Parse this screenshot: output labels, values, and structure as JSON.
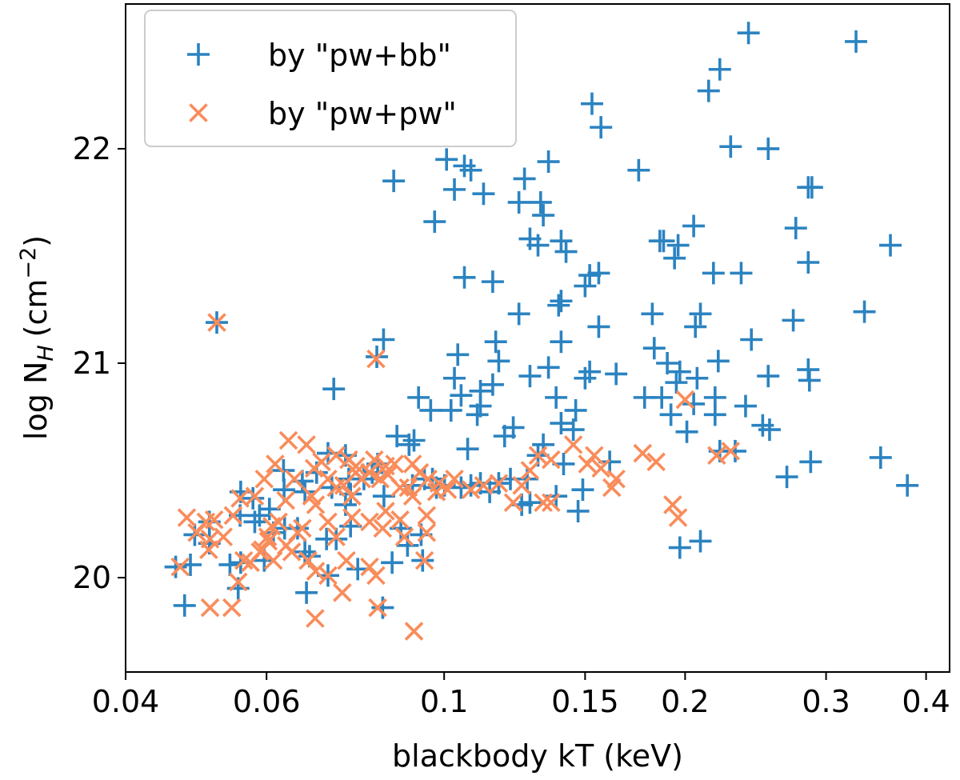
{
  "chart_data": {
    "type": "scatter",
    "title": "",
    "xlabel": "blackbody kT (keV)",
    "ylabel_main": "log N",
    "ylabel_sub": "H",
    "ylabel_unit": "(cm",
    "ylabel_exp": "−2",
    "ylabel_close": ")",
    "xscale": "log",
    "xlim": [
      0.04,
      0.428
    ],
    "ylim": [
      19.56,
      22.675
    ],
    "xticks": [
      0.04,
      0.06,
      0.1,
      0.15,
      0.2,
      0.3,
      0.4
    ],
    "xtick_labels": [
      "0.04",
      "0.06",
      "0.1",
      "0.15",
      "0.2",
      "0.3",
      "0.4"
    ],
    "yticks": [
      20,
      21,
      22
    ],
    "ytick_labels": [
      "20",
      "21",
      "22"
    ],
    "grid": false,
    "legend_position": "top-left",
    "series": [
      {
        "name": "by \"pw+bb\"",
        "marker": "plus",
        "color": "#2b83c1",
        "points": [
          [
            0.24,
            22.54
          ],
          [
            0.327,
            22.5
          ],
          [
            0.221,
            22.37
          ],
          [
            0.214,
            22.27
          ],
          [
            0.153,
            22.21
          ],
          [
            0.157,
            22.1
          ],
          [
            0.228,
            22.01
          ],
          [
            0.254,
            22.0
          ],
          [
            0.1007,
            21.95
          ],
          [
            0.106,
            21.92
          ],
          [
            0.108,
            21.9
          ],
          [
            0.0865,
            21.85
          ],
          [
            0.103,
            21.81
          ],
          [
            0.126,
            21.86
          ],
          [
            0.112,
            21.79
          ],
          [
            0.135,
            21.94
          ],
          [
            0.175,
            21.9
          ],
          [
            0.124,
            21.75
          ],
          [
            0.132,
            21.75
          ],
          [
            0.133,
            21.69
          ],
          [
            0.0973,
            21.66
          ],
          [
            0.205,
            21.64
          ],
          [
            0.275,
            21.63
          ],
          [
            0.285,
            21.82
          ],
          [
            0.288,
            21.82
          ],
          [
            0.361,
            21.55
          ],
          [
            0.186,
            21.57
          ],
          [
            0.188,
            21.57
          ],
          [
            0.196,
            21.55
          ],
          [
            0.194,
            21.49
          ],
          [
            0.128,
            21.58
          ],
          [
            0.131,
            21.55
          ],
          [
            0.14,
            21.57
          ],
          [
            0.142,
            21.52
          ],
          [
            0.285,
            21.47
          ],
          [
            0.235,
            21.42
          ],
          [
            0.217,
            21.42
          ],
          [
            0.106,
            21.4
          ],
          [
            0.115,
            21.38
          ],
          [
            0.152,
            21.41
          ],
          [
            0.15,
            21.36
          ],
          [
            0.156,
            21.42
          ],
          [
            0.14,
            21.29
          ],
          [
            0.139,
            21.27
          ],
          [
            0.124,
            21.23
          ],
          [
            0.182,
            21.23
          ],
          [
            0.209,
            21.23
          ],
          [
            0.206,
            21.17
          ],
          [
            0.273,
            21.2
          ],
          [
            0.335,
            21.24
          ],
          [
            0.156,
            21.17
          ],
          [
            0.242,
            21.11
          ],
          [
            0.084,
            21.11
          ],
          [
            0.116,
            21.1
          ],
          [
            0.104,
            21.04
          ],
          [
            0.117,
            21.01
          ],
          [
            0.14,
            21.1
          ],
          [
            0.128,
            20.94
          ],
          [
            0.135,
            20.98
          ],
          [
            0.152,
            20.96
          ],
          [
            0.15,
            20.93
          ],
          [
            0.164,
            20.95
          ],
          [
            0.183,
            21.07
          ],
          [
            0.19,
            21.0
          ],
          [
            0.197,
            20.96
          ],
          [
            0.195,
            20.91
          ],
          [
            0.207,
            20.93
          ],
          [
            0.22,
            21.01
          ],
          [
            0.254,
            20.94
          ],
          [
            0.285,
            20.97
          ],
          [
            0.286,
            20.92
          ],
          [
            0.0728,
            20.88
          ],
          [
            0.0929,
            20.84
          ],
          [
            0.103,
            20.93
          ],
          [
            0.105,
            20.85
          ],
          [
            0.111,
            20.87
          ],
          [
            0.115,
            20.9
          ],
          [
            0.138,
            20.84
          ],
          [
            0.146,
            20.78
          ],
          [
            0.178,
            20.84
          ],
          [
            0.187,
            20.84
          ],
          [
            0.192,
            20.76
          ],
          [
            0.205,
            20.81
          ],
          [
            0.218,
            20.84
          ],
          [
            0.238,
            20.8
          ],
          [
            0.25,
            20.71
          ],
          [
            0.255,
            20.69
          ],
          [
            0.218,
            20.76
          ],
          [
            0.102,
            20.78
          ],
          [
            0.11,
            20.76
          ],
          [
            0.0962,
            20.78
          ],
          [
            0.119,
            20.66
          ],
          [
            0.122,
            20.7
          ],
          [
            0.107,
            20.6
          ],
          [
            0.111,
            20.8
          ],
          [
            0.14,
            20.72
          ],
          [
            0.145,
            20.69
          ],
          [
            0.161,
            20.54
          ],
          [
            0.201,
            20.68
          ],
          [
            0.351,
            20.56
          ],
          [
            0.379,
            20.43
          ],
          [
            0.268,
            20.47
          ],
          [
            0.287,
            20.54
          ],
          [
            0.221,
            20.59
          ],
          [
            0.231,
            20.59
          ],
          [
            0.149,
            20.41
          ],
          [
            0.133,
            20.62
          ],
          [
            0.131,
            20.57
          ],
          [
            0.197,
            20.14
          ],
          [
            0.209,
            20.17
          ],
          [
            0.147,
            20.31
          ],
          [
            0.125,
            20.34
          ],
          [
            0.128,
            20.35
          ],
          [
            0.141,
            20.53
          ],
          [
            0.0873,
            20.66
          ],
          [
            0.0904,
            20.62
          ],
          [
            0.0917,
            20.64
          ],
          [
            0.0883,
            20.23
          ],
          [
            0.09,
            20.15
          ],
          [
            0.0753,
            20.57
          ],
          [
            0.0813,
            20.49
          ],
          [
            0.0826,
            20.53
          ],
          [
            0.0794,
            20.46
          ],
          [
            0.0724,
            20.42
          ],
          [
            0.0753,
            20.34
          ],
          [
            0.0841,
            20.38
          ],
          [
            0.0764,
            20.24
          ],
          [
            0.0693,
            20.49
          ],
          [
            0.0665,
            20.45
          ],
          [
            0.0631,
            20.41
          ],
          [
            0.0605,
            20.32
          ],
          [
            0.0577,
            20.37
          ],
          [
            0.0557,
            20.4
          ],
          [
            0.0556,
            20.29
          ],
          [
            0.058,
            20.26
          ],
          [
            0.0632,
            20.23
          ],
          [
            0.0656,
            20.23
          ],
          [
            0.0679,
            20.1
          ],
          [
            0.0673,
            19.93
          ],
          [
            0.0612,
            20.21
          ],
          [
            0.067,
            20.12
          ],
          [
            0.0713,
            20.18
          ],
          [
            0.0716,
            20.01
          ],
          [
            0.0733,
            20.18
          ],
          [
            0.078,
            20.04
          ],
          [
            0.0861,
            20.07
          ],
          [
            0.0838,
            19.86
          ],
          [
            0.094,
            20.08
          ],
          [
            0.0936,
            20.2
          ],
          [
            0.052,
            21.19
          ],
          [
            0.0824,
            21.03
          ],
          [
            0.0462,
            20.05
          ],
          [
            0.0488,
            20.2
          ],
          [
            0.0509,
            20.16
          ],
          [
            0.0482,
            20.06
          ],
          [
            0.0474,
            19.87
          ],
          [
            0.0509,
            20.26
          ],
          [
            0.054,
            20.06
          ],
          [
            0.0557,
            20.07
          ],
          [
            0.0553,
            19.95
          ],
          [
            0.0596,
            20.08
          ],
          [
            0.067,
            20.4
          ],
          [
            0.0716,
            20.58
          ],
          [
            0.063,
            20.5
          ],
          [
            0.0588,
            20.29
          ],
          [
            0.076,
            20.46
          ],
          [
            0.0764,
            20.39
          ],
          [
            0.0913,
            20.43
          ],
          [
            0.0945,
            20.46
          ],
          [
            0.0967,
            20.46
          ],
          [
            0.0978,
            20.42
          ],
          [
            0.1001,
            20.43
          ],
          [
            0.105,
            20.42
          ],
          [
            0.108,
            20.43
          ],
          [
            0.111,
            20.44
          ],
          [
            0.117,
            20.44
          ],
          [
            0.114,
            20.4
          ],
          [
            0.121,
            20.46
          ],
          [
            0.127,
            20.46
          ],
          [
            0.138,
            20.38
          ]
        ]
      },
      {
        "name": "by \"pw+pw\"",
        "marker": "x",
        "color": "#f98c5b",
        "points": [
          [
            0.052,
            21.19
          ],
          [
            0.0822,
            21.02
          ],
          [
            0.2,
            20.83
          ],
          [
            0.145,
            20.62
          ],
          [
            0.228,
            20.59
          ],
          [
            0.219,
            20.57
          ],
          [
            0.177,
            20.58
          ],
          [
            0.184,
            20.54
          ],
          [
            0.193,
            20.34
          ],
          [
            0.196,
            20.28
          ],
          [
            0.151,
            20.53
          ],
          [
            0.154,
            20.57
          ],
          [
            0.164,
            20.46
          ],
          [
            0.162,
            20.42
          ],
          [
            0.157,
            20.51
          ],
          [
            0.136,
            20.55
          ],
          [
            0.131,
            20.57
          ],
          [
            0.128,
            20.5
          ],
          [
            0.125,
            20.43
          ],
          [
            0.122,
            20.35
          ],
          [
            0.136,
            20.35
          ],
          [
            0.133,
            20.35
          ],
          [
            0.117,
            20.44
          ],
          [
            0.112,
            20.43
          ],
          [
            0.108,
            20.41
          ],
          [
            0.103,
            20.46
          ],
          [
            0.101,
            20.41
          ],
          [
            0.0985,
            20.44
          ],
          [
            0.0978,
            20.4
          ],
          [
            0.0955,
            20.46
          ],
          [
            0.0932,
            20.49
          ],
          [
            0.0913,
            20.53
          ],
          [
            0.0902,
            20.42
          ],
          [
            0.0881,
            20.42
          ],
          [
            0.0867,
            20.53
          ],
          [
            0.0851,
            20.48
          ],
          [
            0.0832,
            20.46
          ],
          [
            0.0818,
            20.55
          ],
          [
            0.0807,
            20.49
          ],
          [
            0.0789,
            20.46
          ],
          [
            0.0776,
            20.49
          ],
          [
            0.0767,
            20.38
          ],
          [
            0.0749,
            20.43
          ],
          [
            0.0733,
            20.42
          ],
          [
            0.0716,
            20.46
          ],
          [
            0.0703,
            20.54
          ],
          [
            0.0688,
            20.51
          ],
          [
            0.0673,
            20.62
          ],
          [
            0.065,
            20.46
          ],
          [
            0.0634,
            20.36
          ],
          [
            0.0621,
            20.26
          ],
          [
            0.0603,
            20.17
          ],
          [
            0.0596,
            20.46
          ],
          [
            0.058,
            20.38
          ],
          [
            0.0556,
            20.37
          ],
          [
            0.0545,
            20.29
          ],
          [
            0.053,
            20.19
          ],
          [
            0.0516,
            20.27
          ],
          [
            0.0504,
            20.26
          ],
          [
            0.0491,
            20.21
          ],
          [
            0.0477,
            20.28
          ],
          [
            0.0468,
            20.05
          ],
          [
            0.051,
            20.18
          ],
          [
            0.0508,
            20.13
          ],
          [
            0.051,
            19.86
          ],
          [
            0.0543,
            19.86
          ],
          [
            0.0553,
            19.98
          ],
          [
            0.0562,
            20.08
          ],
          [
            0.0573,
            20.07
          ],
          [
            0.0589,
            20.12
          ],
          [
            0.0602,
            20.19
          ],
          [
            0.0609,
            20.24
          ],
          [
            0.0635,
            20.15
          ],
          [
            0.0665,
            20.23
          ],
          [
            0.0691,
            20.34
          ],
          [
            0.0683,
            20.38
          ],
          [
            0.0716,
            20.26
          ],
          [
            0.0733,
            20.19
          ],
          [
            0.0755,
            20.08
          ],
          [
            0.0767,
            20.28
          ],
          [
            0.0807,
            20.26
          ],
          [
            0.0838,
            20.23
          ],
          [
            0.0845,
            20.31
          ],
          [
            0.0881,
            20.27
          ],
          [
            0.0892,
            20.19
          ],
          [
            0.0945,
            20.08
          ],
          [
            0.0951,
            20.21
          ],
          [
            0.0951,
            20.29
          ],
          [
            0.0913,
            20.38
          ],
          [
            0.0645,
            20.12
          ],
          [
            0.0656,
            20.21
          ],
          [
            0.0676,
            20.08
          ],
          [
            0.0691,
            20.03
          ],
          [
            0.0716,
            20.01
          ],
          [
            0.0746,
            19.93
          ],
          [
            0.0807,
            20.05
          ],
          [
            0.0822,
            20.01
          ],
          [
            0.0826,
            19.86
          ],
          [
            0.0917,
            19.75
          ],
          [
            0.069,
            19.81
          ],
          [
            0.0612,
            20.08
          ],
          [
            0.0593,
            20.13
          ],
          [
            0.0639,
            20.64
          ],
          [
            0.0615,
            20.53
          ],
          [
            0.0733,
            20.57
          ],
          [
            0.076,
            20.55
          ],
          [
            0.0776,
            20.52
          ],
          [
            0.0845,
            20.52
          ]
        ]
      }
    ]
  }
}
